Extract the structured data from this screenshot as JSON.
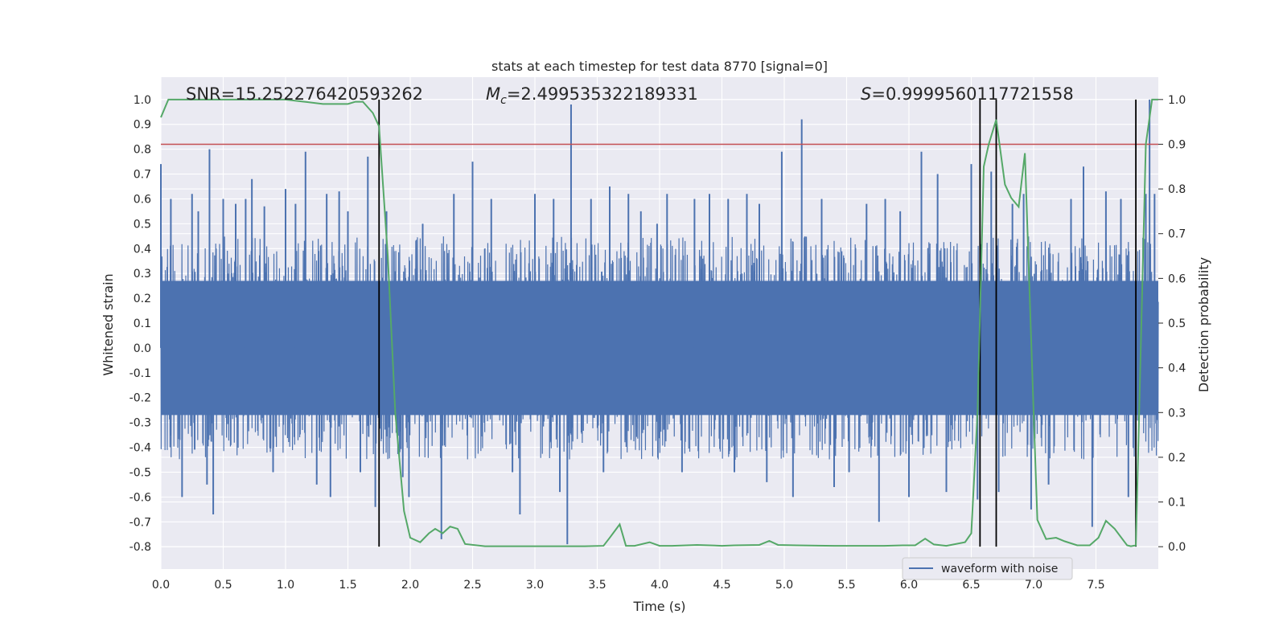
{
  "chart_data": {
    "type": "line",
    "title": "stats at each timestep for test data 8770 [signal=0]",
    "xlabel": "Time (s)",
    "ylabel": "Whitened strain",
    "ylabel_right": "Detection probability",
    "xlim": [
      0.0,
      8.0
    ],
    "ylim": [
      -0.89,
      1.09
    ],
    "ylim_right": [
      -0.05,
      1.05
    ],
    "xticks": [
      "0.0",
      "0.5",
      "1.0",
      "1.5",
      "2.0",
      "2.5",
      "3.0",
      "3.5",
      "4.0",
      "4.5",
      "5.0",
      "5.5",
      "6.0",
      "6.5",
      "7.0",
      "7.5"
    ],
    "yticks": [
      "1.0",
      "0.9",
      "0.8",
      "0.7",
      "0.6",
      "0.5",
      "0.4",
      "0.3",
      "0.2",
      "0.1",
      "0.0",
      "-0.1",
      "-0.2",
      "-0.3",
      "-0.4",
      "-0.5",
      "-0.6",
      "-0.7",
      "-0.8"
    ],
    "yticks_right": [
      "1.0",
      "0.9",
      "0.8",
      "0.7",
      "0.6",
      "0.5",
      "0.4",
      "0.3",
      "0.2",
      "0.1",
      "0.0"
    ],
    "grid": true,
    "legend_placement": "lower-right",
    "annotations": {
      "snr": "SNR=15.252276420593262",
      "mc_symbol": "M",
      "mc_sub": "c",
      "mc_value": "=2.499535322189331",
      "s_symbol": "S",
      "s_value": "=0.9999560117721558"
    },
    "threshold": {
      "value": 0.82,
      "color": "#c44e52"
    },
    "vertical_lines": {
      "x": [
        1.75,
        6.57,
        6.7,
        7.82
      ],
      "color": "#000000"
    },
    "series": [
      {
        "name": "waveform with noise",
        "axis": "left",
        "color": "#4c72b0",
        "envelope": {
          "typical_max": 0.45,
          "typical_min": -0.45,
          "dense_max": 0.27,
          "dense_min": -0.27
        },
        "peak_spikes": [
          [
            0.0,
            0.74
          ],
          [
            0.08,
            0.6
          ],
          [
            0.17,
            -0.6
          ],
          [
            0.25,
            0.62
          ],
          [
            0.3,
            0.55
          ],
          [
            0.37,
            -0.55
          ],
          [
            0.39,
            0.8
          ],
          [
            0.42,
            -0.67
          ],
          [
            0.5,
            0.6
          ],
          [
            0.6,
            0.58
          ],
          [
            0.68,
            0.6
          ],
          [
            0.73,
            0.68
          ],
          [
            0.83,
            0.57
          ],
          [
            0.9,
            -0.5
          ],
          [
            1.0,
            0.64
          ],
          [
            1.08,
            0.58
          ],
          [
            1.16,
            0.79
          ],
          [
            1.25,
            -0.55
          ],
          [
            1.33,
            0.62
          ],
          [
            1.36,
            -0.6
          ],
          [
            1.43,
            0.63
          ],
          [
            1.5,
            0.55
          ],
          [
            1.6,
            -0.5
          ],
          [
            1.66,
            0.77
          ],
          [
            1.72,
            -0.64
          ],
          [
            1.81,
            0.55
          ],
          [
            1.94,
            -0.52
          ],
          [
            1.99,
            -0.6
          ],
          [
            2.1,
            0.5
          ],
          [
            2.25,
            -0.77
          ],
          [
            2.35,
            0.62
          ],
          [
            2.5,
            0.75
          ],
          [
            2.65,
            0.6
          ],
          [
            2.82,
            -0.5
          ],
          [
            2.88,
            -0.67
          ],
          [
            3.0,
            0.62
          ],
          [
            3.15,
            0.6
          ],
          [
            3.2,
            -0.58
          ],
          [
            3.26,
            -0.79
          ],
          [
            3.29,
            0.98
          ],
          [
            3.45,
            0.6
          ],
          [
            3.55,
            -0.5
          ],
          [
            3.6,
            0.65
          ],
          [
            3.75,
            0.62
          ],
          [
            3.85,
            0.55
          ],
          [
            3.98,
            0.5
          ],
          [
            4.06,
            0.62
          ],
          [
            4.18,
            -0.5
          ],
          [
            4.28,
            0.6
          ],
          [
            4.4,
            0.62
          ],
          [
            4.55,
            0.6
          ],
          [
            4.6,
            -0.5
          ],
          [
            4.7,
            0.62
          ],
          [
            4.8,
            0.58
          ],
          [
            4.86,
            -0.54
          ],
          [
            4.98,
            0.79
          ],
          [
            5.07,
            -0.6
          ],
          [
            5.14,
            0.92
          ],
          [
            5.3,
            0.6
          ],
          [
            5.4,
            -0.56
          ],
          [
            5.52,
            -0.5
          ],
          [
            5.66,
            0.58
          ],
          [
            5.76,
            -0.7
          ],
          [
            5.81,
            0.6
          ],
          [
            5.93,
            0.55
          ],
          [
            6.0,
            -0.6
          ],
          [
            6.1,
            0.79
          ],
          [
            6.23,
            0.7
          ],
          [
            6.3,
            -0.58
          ],
          [
            6.5,
            0.74
          ],
          [
            6.55,
            -0.61
          ],
          [
            6.66,
            0.71
          ],
          [
            6.72,
            -0.58
          ],
          [
            6.83,
            0.58
          ],
          [
            6.92,
            0.62
          ],
          [
            6.98,
            -0.65
          ],
          [
            7.12,
            -0.55
          ],
          [
            7.3,
            0.6
          ],
          [
            7.4,
            0.73
          ],
          [
            7.47,
            -0.72
          ],
          [
            7.58,
            0.63
          ],
          [
            7.7,
            0.6
          ],
          [
            7.76,
            -0.6
          ],
          [
            7.9,
            0.62
          ],
          [
            7.93,
            1.0
          ],
          [
            7.97,
            0.62
          ]
        ]
      },
      {
        "name": "",
        "axis": "right",
        "color": "#55a868",
        "x": [
          0.0,
          0.06,
          0.12,
          0.5,
          1.0,
          1.3,
          1.5,
          1.56,
          1.62,
          1.7,
          1.75,
          1.82,
          1.88,
          1.95,
          2.0,
          2.08,
          2.15,
          2.2,
          2.26,
          2.32,
          2.38,
          2.44,
          2.6,
          3.0,
          3.4,
          3.55,
          3.6,
          3.68,
          3.73,
          3.8,
          3.92,
          4.0,
          4.1,
          4.3,
          4.5,
          4.6,
          4.8,
          4.88,
          4.95,
          5.1,
          5.4,
          5.8,
          5.95,
          6.05,
          6.13,
          6.2,
          6.3,
          6.45,
          6.5,
          6.55,
          6.6,
          6.64,
          6.7,
          6.77,
          6.82,
          6.88,
          6.93,
          7.0,
          7.03,
          7.1,
          7.18,
          7.25,
          7.35,
          7.45,
          7.52,
          7.58,
          7.65,
          7.75,
          7.78,
          7.82,
          7.9,
          7.95,
          8.0
        ],
        "y": [
          0.96,
          1.0,
          1.0,
          1.0,
          1.0,
          0.99,
          0.99,
          0.995,
          0.995,
          0.97,
          0.94,
          0.65,
          0.3,
          0.08,
          0.02,
          0.01,
          0.03,
          0.04,
          0.03,
          0.045,
          0.04,
          0.006,
          0.001,
          0.001,
          0.001,
          0.002,
          0.02,
          0.05,
          0.002,
          0.002,
          0.01,
          0.002,
          0.002,
          0.004,
          0.002,
          0.003,
          0.004,
          0.013,
          0.004,
          0.003,
          0.002,
          0.002,
          0.003,
          0.003,
          0.018,
          0.005,
          0.002,
          0.01,
          0.03,
          0.3,
          0.85,
          0.9,
          0.955,
          0.81,
          0.78,
          0.76,
          0.88,
          0.3,
          0.06,
          0.017,
          0.02,
          0.012,
          0.003,
          0.003,
          0.02,
          0.058,
          0.04,
          0.003,
          0.001,
          0.003,
          0.9,
          1.0,
          1.0
        ]
      }
    ]
  }
}
